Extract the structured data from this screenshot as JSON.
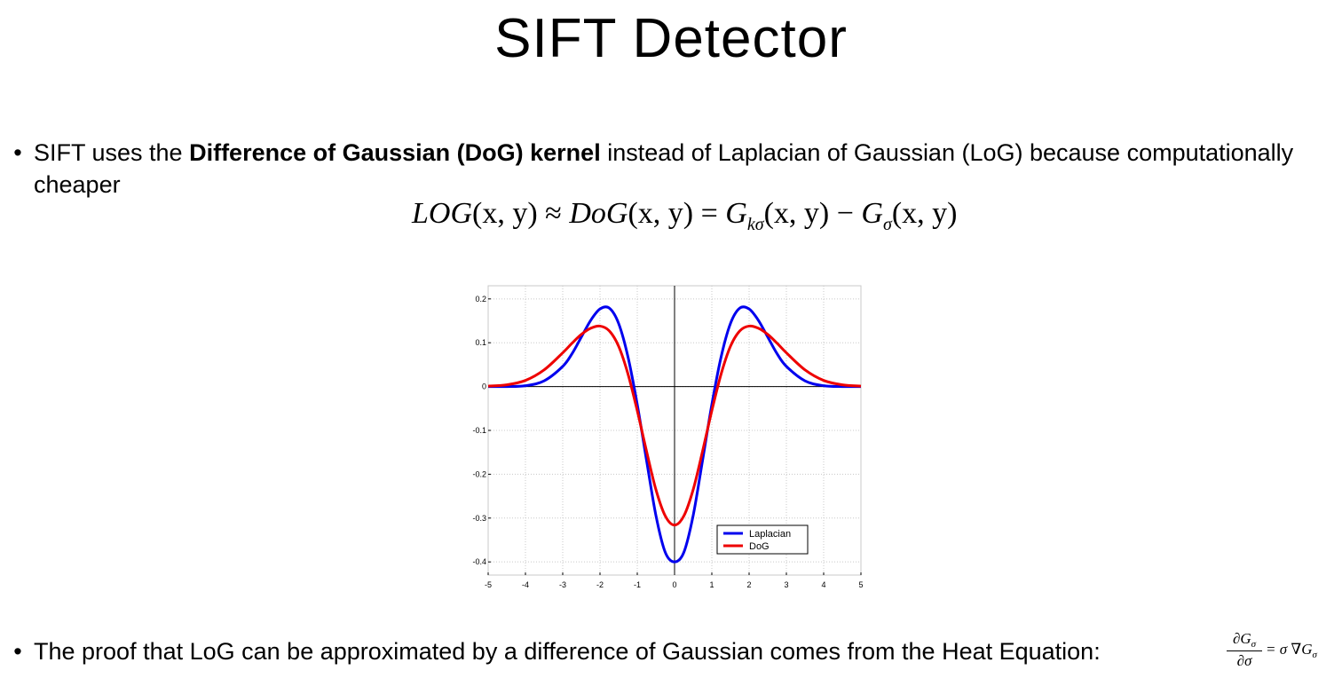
{
  "slide": {
    "title": "SIFT Detector"
  },
  "bullets": [
    {
      "dot": "•",
      "pre": "SIFT uses the ",
      "bold": "Difference of Gaussian (DoG) kernel",
      "post": " instead of Laplacian of Gaussian (LoG) because computationally cheaper"
    },
    {
      "dot": "•",
      "text": "The proof that LoG can be approximated by a difference of Gaussian comes from the Heat Equation:"
    }
  ],
  "formula": {
    "lhs": "LOG",
    "args1": "(x, y) ≈ ",
    "dog": "DoG",
    "args2": "(x, y) = ",
    "g1": "G",
    "g1_sub": "kσ",
    "args3": "(x, y) − ",
    "g2": "G",
    "g2_sub": "σ",
    "args4": "(x, y)"
  },
  "heat_equation": {
    "numerator": "∂G",
    "numerator_sub": "σ",
    "denominator": "∂σ",
    "rhs": "= σ ∇G",
    "rhs_sub": "σ"
  },
  "chart_data": {
    "type": "line",
    "title": "",
    "xlabel": "",
    "ylabel": "",
    "xlim": [
      -5,
      5
    ],
    "ylim": [
      -0.43,
      0.23
    ],
    "x_ticks": [
      -5,
      -4,
      -3,
      -2,
      -1,
      0,
      1,
      2,
      3,
      4,
      5
    ],
    "x_tick_labels": [
      "-5",
      "-4",
      "-3",
      "-2",
      "-1",
      "0",
      "1",
      "2",
      "3",
      "4",
      "5"
    ],
    "y_ticks": [
      0.2,
      0.1,
      0,
      -0.1,
      -0.2,
      -0.3,
      -0.4
    ],
    "y_tick_labels": [
      "0.2",
      "0.1",
      "0",
      "-0.1",
      "-0.2",
      "-0.3",
      "-0.4"
    ],
    "grid": true,
    "legend_position": "bottom-right",
    "series": [
      {
        "name": "Laplacian",
        "color": "#0000ee",
        "x": [
          -5,
          -4.5,
          -4,
          -3.5,
          -3,
          -2.75,
          -2.5,
          -2.25,
          -2,
          -1.75,
          -1.5,
          -1.25,
          -1,
          -0.75,
          -0.5,
          -0.25,
          0,
          0.25,
          0.5,
          0.75,
          1,
          1.25,
          1.5,
          1.75,
          2,
          2.25,
          2.5,
          2.75,
          3,
          3.5,
          4,
          4.5,
          5
        ],
        "y": [
          0.0,
          0.0,
          0.002,
          0.013,
          0.046,
          0.075,
          0.113,
          0.151,
          0.177,
          0.179,
          0.144,
          0.068,
          -0.041,
          -0.169,
          -0.294,
          -0.378,
          -0.4,
          -0.378,
          -0.294,
          -0.169,
          -0.041,
          0.068,
          0.144,
          0.179,
          0.177,
          0.151,
          0.113,
          0.075,
          0.046,
          0.013,
          0.002,
          0.0,
          0.0
        ]
      },
      {
        "name": "DoG",
        "color": "#ee0000",
        "x": [
          -5,
          -4.5,
          -4,
          -3.5,
          -3,
          -2.75,
          -2.5,
          -2.25,
          -2,
          -1.75,
          -1.5,
          -1.25,
          -1,
          -0.75,
          -0.5,
          -0.25,
          0,
          0.25,
          0.5,
          0.75,
          1,
          1.25,
          1.5,
          1.75,
          2,
          2.25,
          2.5,
          2.75,
          3,
          3.5,
          4,
          4.5,
          5
        ],
        "y": [
          0.001,
          0.004,
          0.014,
          0.038,
          0.077,
          0.099,
          0.119,
          0.133,
          0.138,
          0.127,
          0.092,
          0.029,
          -0.055,
          -0.148,
          -0.235,
          -0.295,
          -0.316,
          -0.295,
          -0.235,
          -0.148,
          -0.055,
          0.029,
          0.092,
          0.127,
          0.138,
          0.133,
          0.119,
          0.099,
          0.077,
          0.038,
          0.014,
          0.004,
          0.001
        ]
      }
    ]
  }
}
